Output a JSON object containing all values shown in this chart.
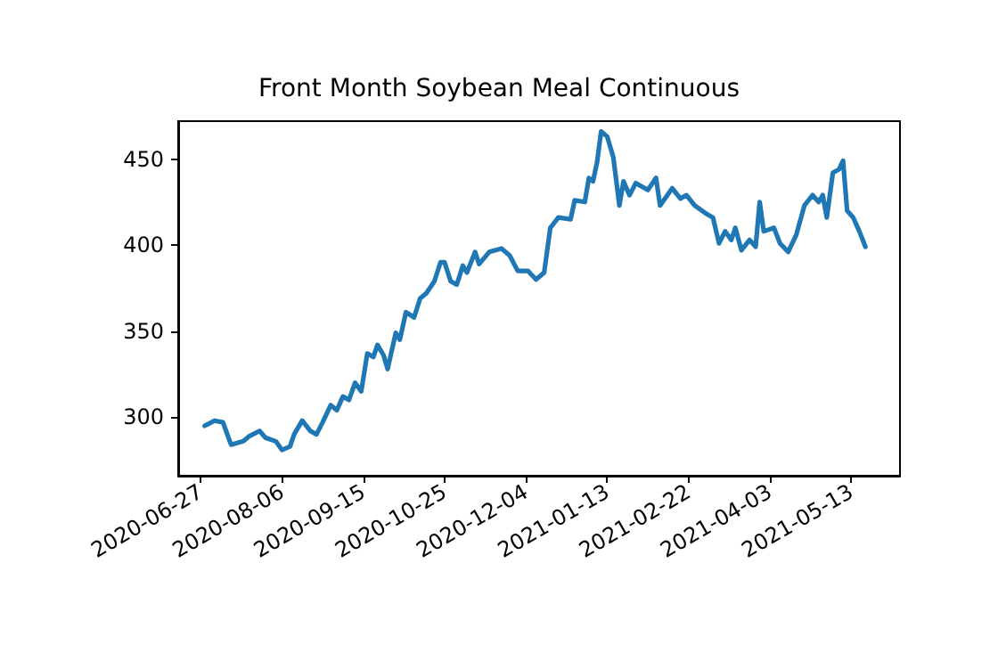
{
  "chart_data": {
    "type": "line",
    "title": "Front Month Soybean Meal Continuous",
    "x": [
      "2020-06-29",
      "2020-07-04",
      "2020-07-08",
      "2020-07-12",
      "2020-07-18",
      "2020-07-21",
      "2020-07-26",
      "2020-07-29",
      "2020-08-03",
      "2020-08-06",
      "2020-08-10",
      "2020-08-12",
      "2020-08-16",
      "2020-08-20",
      "2020-08-23",
      "2020-08-26",
      "2020-08-30",
      "2020-09-02",
      "2020-09-05",
      "2020-09-08",
      "2020-09-11",
      "2020-09-14",
      "2020-09-17",
      "2020-09-20",
      "2020-09-22",
      "2020-09-25",
      "2020-09-27",
      "2020-10-01",
      "2020-10-03",
      "2020-10-06",
      "2020-10-10",
      "2020-10-13",
      "2020-10-16",
      "2020-10-20",
      "2020-10-23",
      "2020-10-25",
      "2020-10-28",
      "2020-10-31",
      "2020-11-03",
      "2020-11-05",
      "2020-11-09",
      "2020-11-11",
      "2020-11-16",
      "2020-11-22",
      "2020-11-26",
      "2020-11-30",
      "2020-12-05",
      "2020-12-09",
      "2020-12-13",
      "2020-12-16",
      "2020-12-20",
      "2020-12-26",
      "2020-12-28",
      "2021-01-02",
      "2021-01-04",
      "2021-01-06",
      "2021-01-08",
      "2021-01-10",
      "2021-01-13",
      "2021-01-16",
      "2021-01-19",
      "2021-01-21",
      "2021-01-24",
      "2021-01-27",
      "2021-02-02",
      "2021-02-06",
      "2021-02-08",
      "2021-02-14",
      "2021-02-18",
      "2021-02-21",
      "2021-02-25",
      "2021-03-03",
      "2021-03-06",
      "2021-03-09",
      "2021-03-12",
      "2021-03-15",
      "2021-03-17",
      "2021-03-20",
      "2021-03-24",
      "2021-03-27",
      "2021-03-29",
      "2021-03-31",
      "2021-04-05",
      "2021-04-08",
      "2021-04-12",
      "2021-04-16",
      "2021-04-20",
      "2021-04-24",
      "2021-04-27",
      "2021-04-29",
      "2021-05-01",
      "2021-05-04",
      "2021-05-07",
      "2021-05-09",
      "2021-05-11",
      "2021-05-14",
      "2021-05-17",
      "2021-05-20"
    ],
    "series": [
      {
        "color": "#1f77b4",
        "values": [
          295,
          298,
          297,
          284,
          286,
          289,
          292,
          288,
          286,
          281,
          283,
          290,
          298,
          292,
          290,
          297,
          307,
          304,
          312,
          310,
          320,
          315,
          337,
          335,
          342,
          336,
          328,
          349,
          345,
          361,
          358,
          369,
          372,
          379,
          390,
          390,
          379,
          377,
          388,
          384,
          396,
          389,
          396,
          398,
          394,
          385,
          385,
          380,
          384,
          410,
          416,
          415,
          426,
          425,
          439,
          437,
          448,
          466,
          463,
          451,
          423,
          437,
          429,
          436,
          432,
          439,
          423,
          433,
          427,
          429,
          423,
          418,
          416,
          401,
          408,
          403,
          410,
          397,
          403,
          399,
          425,
          408,
          410,
          401,
          396,
          406,
          423,
          429,
          425,
          429,
          416,
          442,
          444,
          449,
          420,
          416,
          408,
          399
        ]
      }
    ],
    "xlim": [
      "2020-06-16",
      "2021-06-06"
    ],
    "xticks": [
      "2020-06-27",
      "2020-08-06",
      "2020-09-15",
      "2020-10-25",
      "2020-12-04",
      "2021-01-13",
      "2021-02-22",
      "2021-04-03",
      "2021-05-13"
    ],
    "ylim": [
      266,
      472
    ],
    "yticks": [
      300,
      350,
      400,
      450
    ],
    "grid": false,
    "marker": "none",
    "line_style": "solid"
  }
}
